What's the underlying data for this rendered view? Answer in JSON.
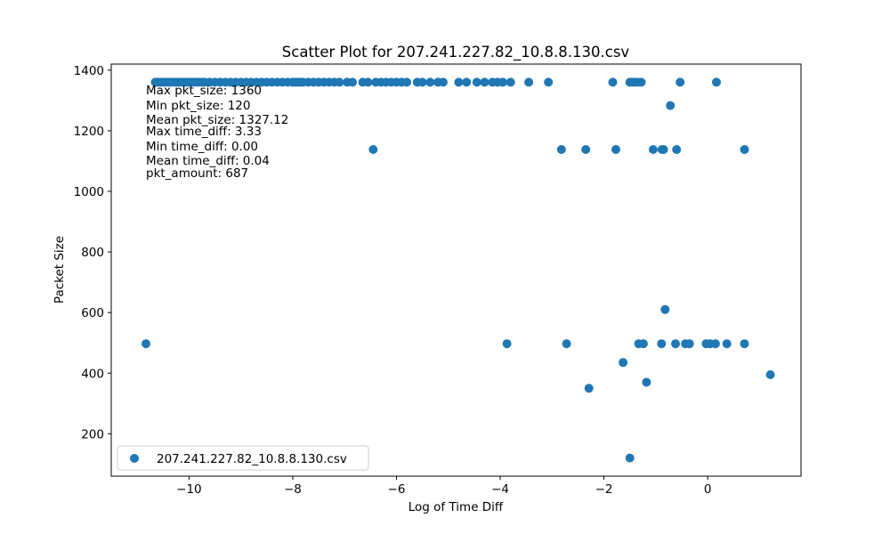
{
  "chart_data": {
    "type": "scatter",
    "title": "Scatter Plot for 207.241.227.82_10.8.8.130.csv",
    "xlabel": "Log of Time Diff",
    "ylabel": "Packet Size",
    "xlim": [
      -11.5,
      1.8
    ],
    "ylim": [
      60,
      1420
    ],
    "xticks": [
      -10,
      -8,
      -6,
      -4,
      -2,
      0
    ],
    "xtick_labels": [
      "−10",
      "−8",
      "−6",
      "−4",
      "−2",
      "0"
    ],
    "yticks": [
      200,
      400,
      600,
      800,
      1000,
      1200,
      1400
    ],
    "ytick_labels": [
      "200",
      "400",
      "600",
      "800",
      "1000",
      "1200",
      "1400"
    ],
    "grid": false,
    "legend_position": "lower-left",
    "marker_color": "#1f77b4",
    "series": [
      {
        "name": "207.241.227.82_10.8.8.130.csv",
        "points": [
          [
            -10.65,
            1360
          ],
          [
            -10.6,
            1360
          ],
          [
            -10.55,
            1360
          ],
          [
            -10.5,
            1360
          ],
          [
            -10.45,
            1360
          ],
          [
            -10.4,
            1360
          ],
          [
            -10.35,
            1360
          ],
          [
            -10.3,
            1360
          ],
          [
            -10.25,
            1360
          ],
          [
            -10.2,
            1360
          ],
          [
            -10.15,
            1360
          ],
          [
            -10.1,
            1360
          ],
          [
            -10.05,
            1360
          ],
          [
            -10.0,
            1360
          ],
          [
            -9.95,
            1360
          ],
          [
            -9.9,
            1360
          ],
          [
            -9.85,
            1360
          ],
          [
            -9.8,
            1360
          ],
          [
            -9.75,
            1360
          ],
          [
            -9.7,
            1360
          ],
          [
            -9.6,
            1360
          ],
          [
            -9.5,
            1360
          ],
          [
            -9.4,
            1360
          ],
          [
            -9.3,
            1360
          ],
          [
            -9.2,
            1360
          ],
          [
            -9.1,
            1360
          ],
          [
            -9.0,
            1360
          ],
          [
            -8.9,
            1360
          ],
          [
            -8.8,
            1360
          ],
          [
            -8.7,
            1360
          ],
          [
            -8.6,
            1360
          ],
          [
            -8.5,
            1360
          ],
          [
            -8.4,
            1360
          ],
          [
            -8.3,
            1360
          ],
          [
            -8.2,
            1360
          ],
          [
            -8.1,
            1360
          ],
          [
            -8.0,
            1360
          ],
          [
            -7.95,
            1360
          ],
          [
            -7.9,
            1360
          ],
          [
            -7.85,
            1360
          ],
          [
            -7.8,
            1360
          ],
          [
            -7.7,
            1360
          ],
          [
            -7.6,
            1360
          ],
          [
            -7.5,
            1360
          ],
          [
            -7.4,
            1360
          ],
          [
            -7.3,
            1360
          ],
          [
            -7.2,
            1360
          ],
          [
            -7.1,
            1360
          ],
          [
            -6.95,
            1360
          ],
          [
            -6.85,
            1360
          ],
          [
            -6.65,
            1360
          ],
          [
            -6.55,
            1360
          ],
          [
            -6.4,
            1360
          ],
          [
            -6.3,
            1360
          ],
          [
            -6.2,
            1360
          ],
          [
            -6.1,
            1360
          ],
          [
            -6.0,
            1360
          ],
          [
            -5.9,
            1360
          ],
          [
            -5.8,
            1360
          ],
          [
            -5.6,
            1360
          ],
          [
            -5.5,
            1360
          ],
          [
            -5.35,
            1360
          ],
          [
            -5.2,
            1360
          ],
          [
            -5.1,
            1360
          ],
          [
            -4.8,
            1360
          ],
          [
            -4.65,
            1360
          ],
          [
            -4.45,
            1360
          ],
          [
            -4.3,
            1360
          ],
          [
            -4.15,
            1360
          ],
          [
            -4.05,
            1360
          ],
          [
            -3.95,
            1360
          ],
          [
            -3.8,
            1360
          ],
          [
            -3.45,
            1360
          ],
          [
            -3.07,
            1360
          ],
          [
            -1.83,
            1360
          ],
          [
            -1.5,
            1360
          ],
          [
            -1.45,
            1360
          ],
          [
            -1.4,
            1360
          ],
          [
            -1.35,
            1360
          ],
          [
            -1.28,
            1360
          ],
          [
            -0.53,
            1360
          ],
          [
            0.17,
            1360
          ],
          [
            -0.72,
            1283
          ],
          [
            -6.45,
            1138
          ],
          [
            -2.82,
            1138
          ],
          [
            -2.35,
            1138
          ],
          [
            -1.77,
            1138
          ],
          [
            -1.05,
            1138
          ],
          [
            -0.88,
            1138
          ],
          [
            -0.85,
            1138
          ],
          [
            -0.6,
            1138
          ],
          [
            0.71,
            1138
          ],
          [
            -0.82,
            610
          ],
          [
            -10.83,
            497
          ],
          [
            -3.87,
            497
          ],
          [
            -2.72,
            497
          ],
          [
            -1.33,
            497
          ],
          [
            -1.24,
            497
          ],
          [
            -0.89,
            497
          ],
          [
            -0.62,
            497
          ],
          [
            -0.43,
            497
          ],
          [
            -0.35,
            497
          ],
          [
            -0.03,
            497
          ],
          [
            0.05,
            497
          ],
          [
            0.15,
            497
          ],
          [
            0.37,
            497
          ],
          [
            0.71,
            497
          ],
          [
            -1.63,
            435
          ],
          [
            -1.18,
            370
          ],
          [
            -2.29,
            350
          ],
          [
            1.21,
            395
          ],
          [
            -1.5,
            120
          ]
        ]
      }
    ]
  },
  "annotations": [
    "Max pkt_size: 1360",
    "Min pkt_size: 120",
    "Mean pkt_size: 1327.12",
    "Max time_diff: 3.33",
    "Min time_diff: 0.00",
    "Mean time_diff: 0.04",
    "pkt_amount: 687"
  ]
}
